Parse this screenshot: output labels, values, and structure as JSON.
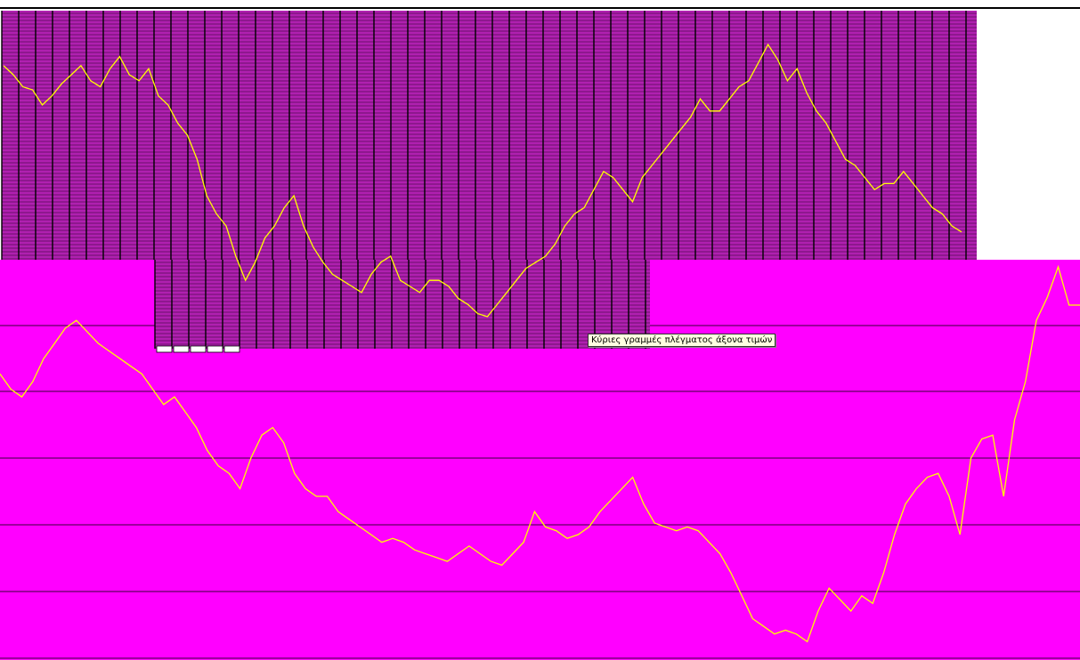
{
  "colors": {
    "plot_background": "#ff00ff",
    "series_line": "#ffff00",
    "gridline": "#3a003a",
    "overlay_fill": "#b020b0",
    "overlay_stripe": "#2a002a",
    "top_background": "#ffffff"
  },
  "tooltip": {
    "text": "Κύριες γραμμές πλέγματος άξονα τιμών"
  },
  "chart_data": [
    {
      "type": "line",
      "title": "",
      "xlabel": "",
      "ylabel": "",
      "grid": "horizontal major gridlines",
      "legend": "none",
      "series": [
        {
          "values": [
            0.93,
            0.9,
            0.86,
            0.85,
            0.8,
            0.83,
            0.87,
            0.9,
            0.93,
            0.88,
            0.86,
            0.92,
            0.96,
            0.9,
            0.88,
            0.92,
            0.83,
            0.8,
            0.74,
            0.7,
            0.62,
            0.5,
            0.44,
            0.4,
            0.3,
            0.22,
            0.28,
            0.36,
            0.4,
            0.46,
            0.5,
            0.4,
            0.33,
            0.28,
            0.24,
            0.22,
            0.2,
            0.18,
            0.24,
            0.28,
            0.3,
            0.22,
            0.2,
            0.18,
            0.22,
            0.22,
            0.2,
            0.16,
            0.14,
            0.11,
            0.1,
            0.14,
            0.18,
            0.22,
            0.26,
            0.28,
            0.3,
            0.34,
            0.4,
            0.44,
            0.46,
            0.52,
            0.58,
            0.56,
            0.52,
            0.48,
            0.56,
            0.6,
            0.64,
            0.68,
            0.72,
            0.76,
            0.82,
            0.78,
            0.78,
            0.82,
            0.86,
            0.88,
            0.94,
            1.0,
            0.95,
            0.88,
            0.92,
            0.84,
            0.78,
            0.74,
            0.68,
            0.62,
            0.6,
            0.56,
            0.52,
            0.54,
            0.54,
            0.58,
            0.54,
            0.5,
            0.46,
            0.44,
            0.4,
            0.38
          ]
        }
      ]
    },
    {
      "type": "line",
      "title": "",
      "xlabel": "",
      "ylabel": "",
      "grid": "horizontal major gridlines",
      "legend": "none",
      "series": [
        {
          "values": [
            0.72,
            0.68,
            0.66,
            0.7,
            0.76,
            0.8,
            0.84,
            0.86,
            0.83,
            0.8,
            0.78,
            0.76,
            0.74,
            0.72,
            0.68,
            0.64,
            0.66,
            0.62,
            0.58,
            0.52,
            0.48,
            0.46,
            0.42,
            0.5,
            0.56,
            0.58,
            0.54,
            0.46,
            0.42,
            0.4,
            0.4,
            0.36,
            0.34,
            0.32,
            0.3,
            0.28,
            0.29,
            0.28,
            0.26,
            0.25,
            0.24,
            0.23,
            0.25,
            0.27,
            0.25,
            0.23,
            0.22,
            0.25,
            0.28,
            0.36,
            0.32,
            0.31,
            0.29,
            0.3,
            0.32,
            0.36,
            0.39,
            0.42,
            0.45,
            0.38,
            0.33,
            0.32,
            0.31,
            0.32,
            0.31,
            0.28,
            0.25,
            0.2,
            0.14,
            0.08,
            0.06,
            0.04,
            0.05,
            0.04,
            0.02,
            0.1,
            0.16,
            0.13,
            0.1,
            0.14,
            0.12,
            0.2,
            0.3,
            0.38,
            0.42,
            0.45,
            0.46,
            0.4,
            0.3,
            0.5,
            0.55,
            0.56,
            0.4,
            0.6,
            0.7,
            0.86,
            0.92,
            1.0,
            0.9,
            0.9
          ]
        }
      ]
    }
  ]
}
